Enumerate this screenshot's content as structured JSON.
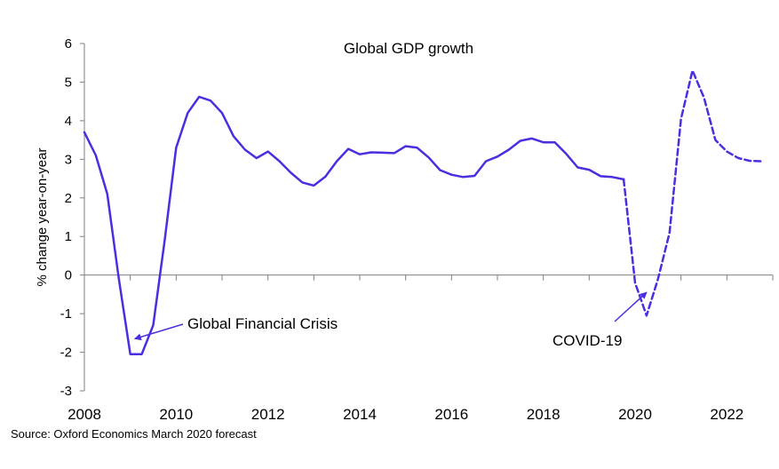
{
  "chart_data": {
    "type": "line",
    "title": "Global GDP growth",
    "ylabel": "% change year-on-year",
    "xlabel": "",
    "ylim": [
      -3,
      6
    ],
    "yticks": [
      "-3",
      "-2",
      "-1",
      "0",
      "1",
      "2",
      "3",
      "4",
      "5",
      "6"
    ],
    "xlim": [
      2008,
      2023
    ],
    "xticks": [
      "2008",
      "2010",
      "2012",
      "2014",
      "2016",
      "2018",
      "2020",
      "2022"
    ],
    "source": "Source: Oxford Economics March 2020 forecast",
    "series": [
      {
        "style": "solid",
        "color": "#4a2ee0",
        "x": [
          2008.0,
          2008.25,
          2008.5,
          2008.75,
          2009.0,
          2009.25,
          2009.5,
          2009.75,
          2010.0,
          2010.25,
          2010.5,
          2010.75,
          2011.0,
          2011.25,
          2011.5,
          2011.75,
          2012.0,
          2012.25,
          2012.5,
          2012.75,
          2013.0,
          2013.25,
          2013.5,
          2013.75,
          2014.0,
          2014.25,
          2014.5,
          2014.75,
          2015.0,
          2015.25,
          2015.5,
          2015.75,
          2016.0,
          2016.25,
          2016.5,
          2016.75,
          2017.0,
          2017.25,
          2017.5,
          2017.75,
          2018.0,
          2018.25,
          2018.5,
          2018.75,
          2019.0,
          2019.25,
          2019.5,
          2019.75
        ],
        "y": [
          3.7,
          3.1,
          2.1,
          -0.1,
          -2.05,
          -2.05,
          -1.3,
          0.9,
          3.3,
          4.2,
          4.62,
          4.52,
          4.2,
          3.6,
          3.25,
          3.03,
          3.2,
          2.95,
          2.65,
          2.4,
          2.32,
          2.55,
          2.95,
          3.27,
          3.13,
          3.18,
          3.17,
          3.16,
          3.34,
          3.3,
          3.05,
          2.72,
          2.6,
          2.54,
          2.57,
          2.95,
          3.07,
          3.25,
          3.48,
          3.54,
          3.44,
          3.44,
          3.14,
          2.79,
          2.73,
          2.56,
          2.54,
          2.48
        ]
      },
      {
        "style": "dashed",
        "color": "#4a2ee0",
        "x": [
          2019.75,
          2020.0,
          2020.25,
          2020.5,
          2020.75,
          2021.0,
          2021.25,
          2021.5,
          2021.75,
          2022.0,
          2022.25,
          2022.5,
          2022.75
        ],
        "y": [
          2.48,
          -0.2,
          -1.05,
          -0.1,
          1.1,
          4.05,
          5.3,
          4.6,
          3.5,
          3.2,
          3.03,
          2.96,
          2.95
        ]
      }
    ],
    "annotations": [
      {
        "text": "Global Financial Crisis",
        "arrow_to": [
          2009.1,
          -1.65
        ]
      },
      {
        "text": "COVID-19",
        "arrow_to": [
          2020.25,
          -0.45
        ]
      }
    ]
  }
}
